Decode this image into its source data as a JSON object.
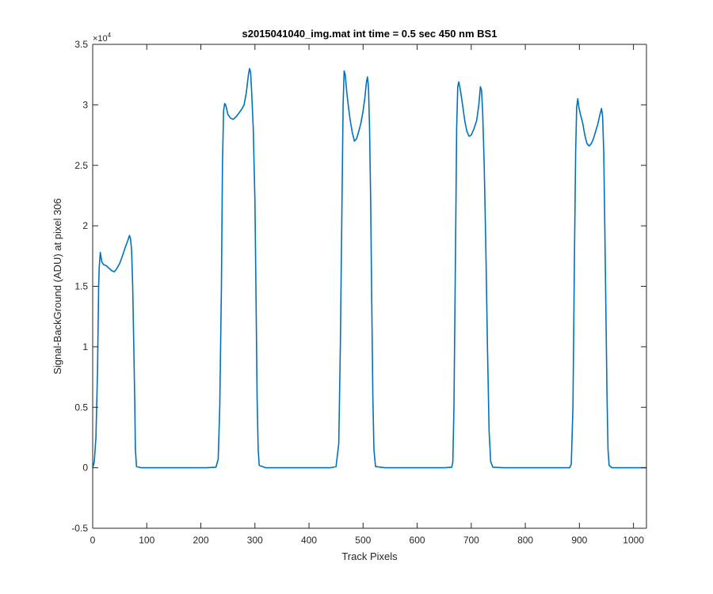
{
  "chart_data": {
    "type": "line",
    "title": "s2015041040_img.mat int time = 0.5 sec  450 nm BS1",
    "xlabel": "Track Pixels",
    "ylabel": "Signal-BackGround (ADU) at pixel 306",
    "xlim": [
      0,
      1024
    ],
    "ylim": [
      -5000,
      35000
    ],
    "y_exponent_label": "×10",
    "y_exponent_power": "4",
    "xticks": [
      "0",
      "100",
      "200",
      "300",
      "400",
      "500",
      "600",
      "700",
      "800",
      "900",
      "1000"
    ],
    "yticks": [
      "-0.5",
      "0",
      "0.5",
      "1",
      "1.5",
      "2",
      "2.5",
      "3",
      "3.5"
    ],
    "grid": false,
    "line_color": "#0072BD",
    "series": [
      {
        "points": [
          [
            0,
            0
          ],
          [
            3,
            500
          ],
          [
            6,
            2500
          ],
          [
            9,
            8000
          ],
          [
            11,
            15000
          ],
          [
            12,
            16500
          ],
          [
            14,
            17800
          ],
          [
            17,
            17000
          ],
          [
            20,
            16800
          ],
          [
            25,
            16700
          ],
          [
            30,
            16500
          ],
          [
            35,
            16300
          ],
          [
            40,
            16200
          ],
          [
            45,
            16500
          ],
          [
            50,
            16900
          ],
          [
            55,
            17500
          ],
          [
            60,
            18200
          ],
          [
            65,
            18800
          ],
          [
            68,
            19200
          ],
          [
            70,
            18900
          ],
          [
            72,
            18000
          ],
          [
            74,
            15000
          ],
          [
            76,
            10000
          ],
          [
            78,
            5000
          ],
          [
            79,
            1500
          ],
          [
            81,
            100
          ],
          [
            90,
            0
          ],
          [
            100,
            0
          ],
          [
            120,
            0
          ],
          [
            150,
            0
          ],
          [
            180,
            0
          ],
          [
            210,
            0
          ],
          [
            228,
            50
          ],
          [
            232,
            700
          ],
          [
            235,
            5000
          ],
          [
            238,
            15000
          ],
          [
            240,
            25000
          ],
          [
            242,
            29500
          ],
          [
            244,
            30100
          ],
          [
            246,
            30000
          ],
          [
            250,
            29200
          ],
          [
            255,
            28900
          ],
          [
            260,
            28800
          ],
          [
            265,
            29000
          ],
          [
            270,
            29300
          ],
          [
            275,
            29600
          ],
          [
            280,
            30000
          ],
          [
            284,
            31000
          ],
          [
            288,
            32500
          ],
          [
            290,
            33000
          ],
          [
            292,
            32700
          ],
          [
            294,
            31000
          ],
          [
            297,
            28000
          ],
          [
            300,
            22000
          ],
          [
            302,
            14000
          ],
          [
            304,
            6000
          ],
          [
            306,
            1500
          ],
          [
            308,
            200
          ],
          [
            320,
            0
          ],
          [
            360,
            0
          ],
          [
            400,
            0
          ],
          [
            440,
            0
          ],
          [
            450,
            100
          ],
          [
            455,
            2000
          ],
          [
            458,
            10000
          ],
          [
            461,
            22000
          ],
          [
            463,
            30000
          ],
          [
            465,
            32800
          ],
          [
            467,
            32500
          ],
          [
            470,
            31000
          ],
          [
            473,
            29800
          ],
          [
            476,
            28800
          ],
          [
            480,
            27700
          ],
          [
            484,
            27000
          ],
          [
            488,
            27200
          ],
          [
            492,
            27800
          ],
          [
            496,
            28500
          ],
          [
            500,
            29500
          ],
          [
            503,
            30500
          ],
          [
            506,
            31800
          ],
          [
            508,
            32300
          ],
          [
            510,
            31500
          ],
          [
            512,
            28000
          ],
          [
            514,
            22000
          ],
          [
            516,
            14000
          ],
          [
            518,
            6000
          ],
          [
            520,
            1500
          ],
          [
            523,
            100
          ],
          [
            540,
            0
          ],
          [
            600,
            0
          ],
          [
            650,
            0
          ],
          [
            664,
            50
          ],
          [
            666,
            500
          ],
          [
            668,
            5000
          ],
          [
            671,
            18000
          ],
          [
            673,
            28000
          ],
          [
            675,
            31500
          ],
          [
            677,
            31900
          ],
          [
            680,
            31200
          ],
          [
            684,
            30000
          ],
          [
            688,
            28700
          ],
          [
            692,
            27800
          ],
          [
            696,
            27400
          ],
          [
            700,
            27500
          ],
          [
            705,
            28000
          ],
          [
            710,
            28700
          ],
          [
            714,
            30000
          ],
          [
            717,
            31500
          ],
          [
            719,
            31200
          ],
          [
            721,
            29500
          ],
          [
            724,
            25000
          ],
          [
            727,
            18000
          ],
          [
            730,
            10000
          ],
          [
            733,
            3000
          ],
          [
            736,
            500
          ],
          [
            740,
            50
          ],
          [
            760,
            0
          ],
          [
            800,
            0
          ],
          [
            860,
            0
          ],
          [
            882,
            0
          ],
          [
            885,
            300
          ],
          [
            888,
            5000
          ],
          [
            891,
            18000
          ],
          [
            893,
            26000
          ],
          [
            895,
            29800
          ],
          [
            897,
            30500
          ],
          [
            899,
            29800
          ],
          [
            902,
            29200
          ],
          [
            906,
            28500
          ],
          [
            910,
            27500
          ],
          [
            914,
            26800
          ],
          [
            918,
            26600
          ],
          [
            922,
            26800
          ],
          [
            926,
            27200
          ],
          [
            930,
            27800
          ],
          [
            934,
            28400
          ],
          [
            938,
            29200
          ],
          [
            941,
            29700
          ],
          [
            943,
            29000
          ],
          [
            945,
            26000
          ],
          [
            947,
            20000
          ],
          [
            949,
            13000
          ],
          [
            951,
            6000
          ],
          [
            953,
            1500
          ],
          [
            955,
            200
          ],
          [
            960,
            0
          ],
          [
            980,
            0
          ],
          [
            1000,
            0
          ],
          [
            1024,
            0
          ]
        ]
      }
    ]
  }
}
